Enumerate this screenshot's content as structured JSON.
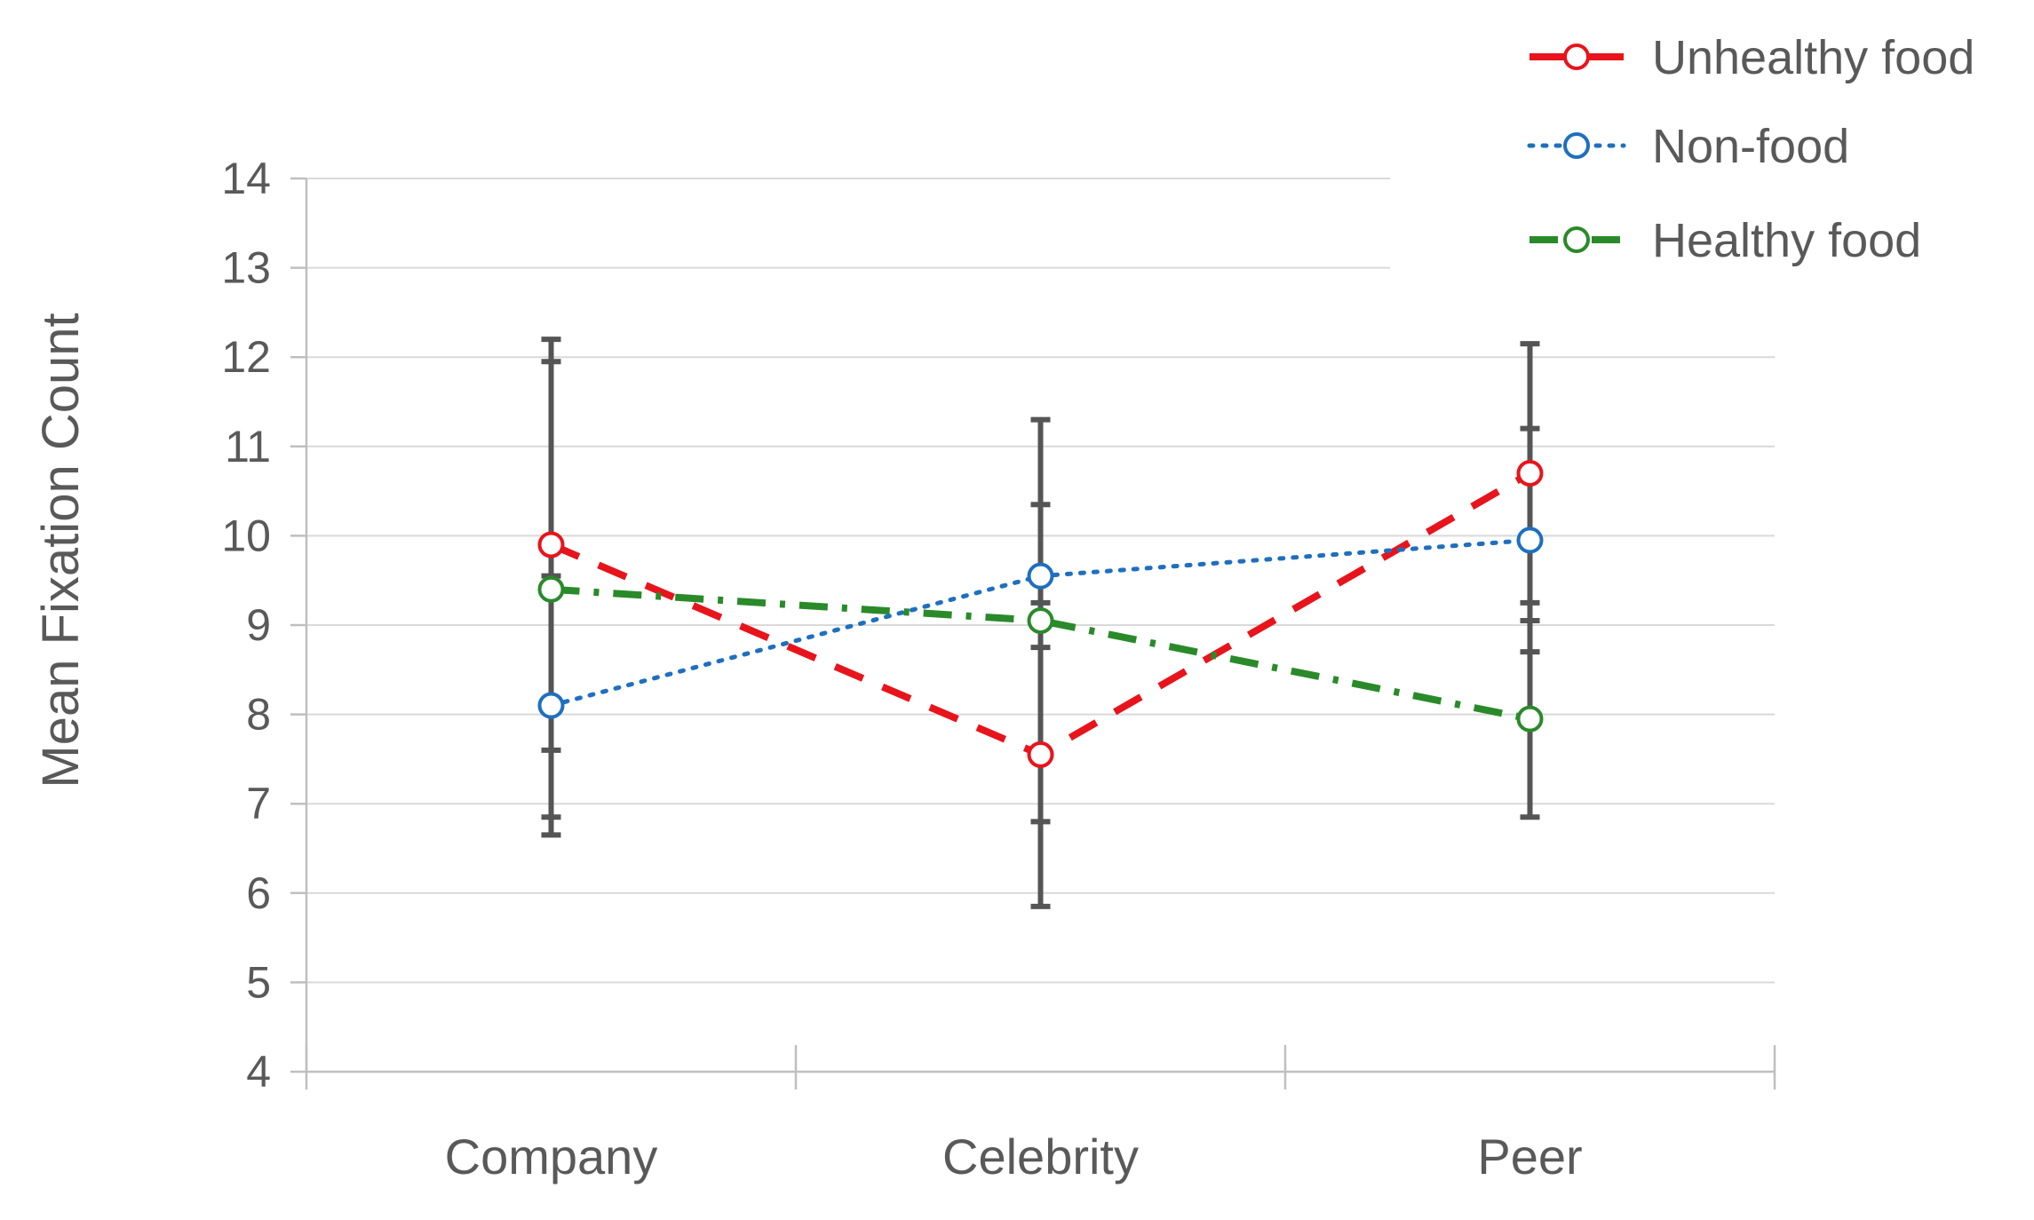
{
  "chart_data": {
    "type": "line",
    "title": "",
    "xlabel": "",
    "ylabel": "Mean Fixation Count",
    "ylim": [
      4,
      14
    ],
    "yticks": [
      4,
      5,
      6,
      7,
      8,
      9,
      10,
      11,
      12,
      13,
      14
    ],
    "categories": [
      "Company",
      "Celebrity",
      "Peer"
    ],
    "grid": true,
    "legend_position": "top-right",
    "series": [
      {
        "name": "Unhealthy food",
        "values": [
          9.9,
          7.55,
          10.7
        ],
        "error": [
          2.3,
          1.7,
          1.45
        ],
        "color": "#e8141c",
        "dash": "dashed"
      },
      {
        "name": "Non-food",
        "values": [
          8.1,
          9.55,
          9.95
        ],
        "error": [
          1.45,
          0.8,
          1.25
        ],
        "color": "#1f6fbf",
        "dash": "dotted"
      },
      {
        "name": "Healthy food",
        "values": [
          9.4,
          9.05,
          7.95
        ],
        "error": [
          2.55,
          2.25,
          1.1
        ],
        "color": "#2a8a2a",
        "dash": "dash-dot"
      }
    ],
    "errorbar_color": "#555555"
  }
}
